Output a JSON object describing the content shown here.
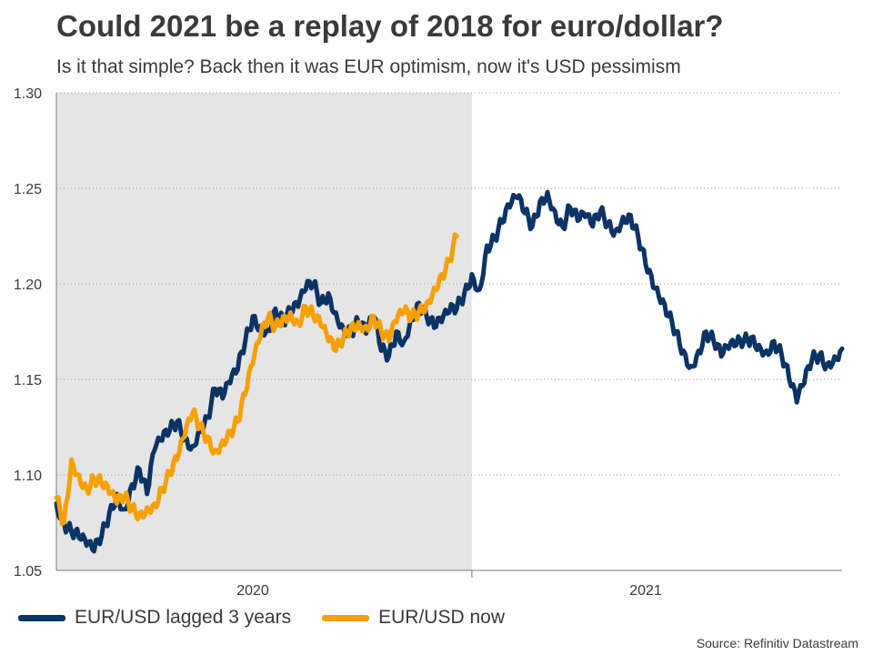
{
  "title": "Could 2021 be a replay of 2018 for euro/dollar?",
  "subtitle": "Is it that simple? Back then it was EUR optimism, now it's USD pessimism",
  "source": "Source: Refinitiv Datastream",
  "chart_data": {
    "type": "line",
    "x_unit": "weeks",
    "x_range": [
      0,
      104
    ],
    "ylim": [
      1.05,
      1.3
    ],
    "yticks": [
      "1.05",
      "1.10",
      "1.15",
      "1.20",
      "1.25",
      "1.30"
    ],
    "ytick_values": [
      1.05,
      1.1,
      1.15,
      1.2,
      1.25,
      1.3
    ],
    "xticks": [
      {
        "label": "2020",
        "x": 26
      },
      {
        "label": "2021",
        "x": 78
      }
    ],
    "x_separator": 55,
    "shaded_region": [
      0,
      55
    ],
    "grid": true,
    "legend_position": "bottom-left",
    "series": [
      {
        "name": "EUR/USD lagged 3 years",
        "color": "#0a3366",
        "x": [
          0,
          1,
          2,
          3,
          4,
          5,
          6,
          7,
          8,
          9,
          10,
          11,
          12,
          13,
          14,
          15,
          16,
          17,
          18,
          19,
          20,
          21,
          22,
          23,
          24,
          25,
          26,
          27,
          28,
          29,
          30,
          31,
          32,
          33,
          34,
          35,
          36,
          37,
          38,
          39,
          40,
          41,
          42,
          43,
          44,
          45,
          46,
          47,
          48,
          49,
          50,
          51,
          52,
          53,
          54,
          55,
          56,
          57,
          58,
          59,
          60,
          61,
          62,
          63,
          64,
          65,
          66,
          67,
          68,
          69,
          70,
          71,
          72,
          73,
          74,
          75,
          76,
          77,
          78,
          79,
          80,
          81,
          82,
          83,
          84,
          85,
          86,
          87,
          88,
          89,
          90,
          91,
          92,
          93,
          94,
          95,
          96,
          97,
          98,
          99,
          100,
          101,
          102,
          103,
          104
        ],
        "values": [
          1.085,
          1.075,
          1.07,
          1.067,
          1.063,
          1.06,
          1.068,
          1.08,
          1.09,
          1.082,
          1.095,
          1.103,
          1.09,
          1.113,
          1.118,
          1.123,
          1.128,
          1.12,
          1.115,
          1.125,
          1.13,
          1.145,
          1.14,
          1.148,
          1.155,
          1.17,
          1.183,
          1.178,
          1.176,
          1.187,
          1.18,
          1.185,
          1.188,
          1.197,
          1.2,
          1.19,
          1.195,
          1.185,
          1.177,
          1.175,
          1.18,
          1.174,
          1.183,
          1.165,
          1.162,
          1.175,
          1.17,
          1.183,
          1.19,
          1.183,
          1.177,
          1.18,
          1.185,
          1.187,
          1.195,
          1.205,
          1.197,
          1.22,
          1.224,
          1.232,
          1.24,
          1.245,
          1.237,
          1.23,
          1.243,
          1.248,
          1.238,
          1.23,
          1.24,
          1.233,
          1.235,
          1.23,
          1.238,
          1.232,
          1.228,
          1.235,
          1.236,
          1.225,
          1.21,
          1.198,
          1.19,
          1.183,
          1.175,
          1.165,
          1.157,
          1.165,
          1.175,
          1.17,
          1.162,
          1.166,
          1.168,
          1.17,
          1.172,
          1.168,
          1.165,
          1.17,
          1.163,
          1.15,
          1.138,
          1.148,
          1.16,
          1.163,
          1.158,
          1.162,
          1.166
        ],
        "noise": 0.004
      },
      {
        "name": "EUR/USD now",
        "color": "#f6a000",
        "x": [
          0,
          1,
          2,
          3,
          4,
          5,
          6,
          7,
          8,
          9,
          10,
          11,
          12,
          13,
          14,
          15,
          16,
          17,
          18,
          19,
          20,
          21,
          22,
          23,
          24,
          25,
          26,
          27,
          28,
          29,
          30,
          31,
          32,
          33,
          34,
          35,
          36,
          37,
          38,
          39,
          40,
          41,
          42,
          43,
          44,
          45,
          46,
          47,
          48,
          49,
          50,
          51,
          52,
          53
        ],
        "values": [
          1.088,
          1.075,
          1.108,
          1.1,
          1.093,
          1.098,
          1.095,
          1.09,
          1.085,
          1.088,
          1.083,
          1.08,
          1.083,
          1.085,
          1.093,
          1.1,
          1.108,
          1.12,
          1.132,
          1.125,
          1.12,
          1.113,
          1.118,
          1.123,
          1.128,
          1.142,
          1.158,
          1.172,
          1.182,
          1.178,
          1.183,
          1.185,
          1.18,
          1.188,
          1.183,
          1.178,
          1.17,
          1.165,
          1.172,
          1.178,
          1.18,
          1.178,
          1.183,
          1.175,
          1.17,
          1.18,
          1.185,
          1.182,
          1.186,
          1.19,
          1.198,
          1.205,
          1.212,
          1.225
        ],
        "noise": 0.004
      }
    ]
  }
}
